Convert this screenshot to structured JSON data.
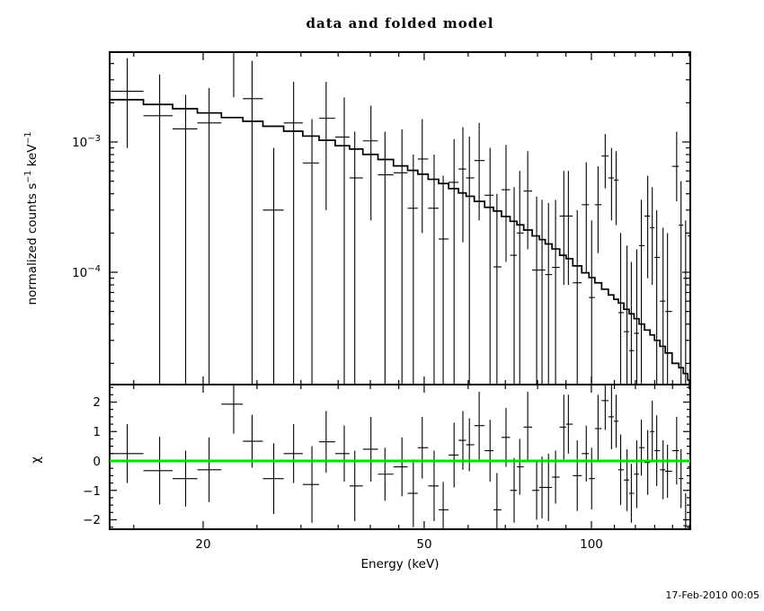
{
  "chart_data": {
    "type": "line",
    "subtype": "xspec-counts-spectrum-with-residuals",
    "title": "data and folded model",
    "xlabel": "Energy (keV)",
    "ylabel_top": "normalized counts s^−1 keV^−1",
    "ylabel_bottom": "χ",
    "timestamp": "17-Feb-2010 00:05",
    "accent_color": "#00e000",
    "frame_color": "#000000",
    "x_scale": "log",
    "y_scale_top": "log",
    "x_range": [
      13.63,
      150.86
    ],
    "y_range_top": [
      1.37e-05,
      0.0049
    ],
    "y_range_bottom": [
      -2.32,
      2.6
    ],
    "x_major_ticks": [
      {
        "value": 20,
        "label": "20"
      },
      {
        "value": 50,
        "label": "50"
      },
      {
        "value": 100,
        "label": "100"
      }
    ],
    "x_minor_ticks": [
      15,
      25,
      30,
      35,
      40,
      45,
      60,
      70,
      80,
      90,
      110,
      120,
      130,
      140,
      150
    ],
    "y_major_ticks": [
      {
        "value": 0.001,
        "base": "10",
        "exp": "−3"
      },
      {
        "value": 0.0001,
        "base": "10",
        "exp": "−4"
      }
    ],
    "chi_major_ticks": [
      {
        "value": 2,
        "label": "2"
      },
      {
        "value": 1,
        "label": "1"
      },
      {
        "value": 0,
        "label": "0"
      },
      {
        "value": -1,
        "label": "−1"
      },
      {
        "value": -2,
        "label": "−2"
      }
    ],
    "chi_minor_step": 0.25,
    "model": {
      "name": "folded model",
      "values": [
        0.00211,
        0.00194,
        0.0018,
        0.00167,
        0.00154,
        0.00144,
        0.00132,
        0.00121,
        0.00111,
        0.00103,
        0.000936,
        0.000882,
        0.000802,
        0.000734,
        0.000655,
        0.000605,
        0.000566,
        0.000517,
        0.00048,
        0.000439,
        0.000406,
        0.000383,
        0.00035,
        0.000315,
        0.000295,
        0.000268,
        0.000246,
        0.000231,
        0.000211,
        0.00019,
        0.000178,
        0.000165,
        0.000151,
        0.000135,
        0.000127,
        0.000112,
        9.9e-05,
        9.1e-05,
        8.3e-05,
        7.4e-05,
        6.7e-05,
        6.2e-05,
        5.8e-05,
        5.2e-05,
        4.8e-05,
        4.4e-05,
        4e-05,
        3.6e-05,
        3.3e-05,
        3e-05,
        2.7e-05,
        2.4e-05,
        2e-05,
        1.85e-05,
        1.67e-05,
        1.49e-05
      ]
    },
    "points": {
      "e": [
        14.6,
        16.7,
        18.6,
        20.5,
        22.7,
        24.5,
        26.8,
        29.1,
        31.4,
        33.3,
        35.9,
        37.5,
        40.1,
        42.5,
        45.6,
        47.8,
        49.6,
        52.1,
        54.1,
        56.6,
        58.7,
        60.3,
        62.8,
        65.7,
        67.6,
        70.2,
        72.6,
        74.3,
        76.8,
        79.7,
        81.5,
        83.7,
        86.2,
        89.2,
        90.9,
        94.3,
        97.9,
        100.1,
        102.8,
        105.9,
        108.7,
        110.8,
        112.9,
        115.9,
        118.0,
        120.7,
        123.0,
        126.3,
        128.7,
        131.1,
        134.6,
        137.1,
        142.4,
        145.0,
        147.8,
        150.5
      ],
      "rate": [
        0.00245,
        0.00159,
        0.00126,
        0.0014,
        0.0049,
        0.00215,
        0.0003,
        0.0014,
        0.00069,
        0.00152,
        0.00109,
        0.00053,
        0.00102,
        0.00056,
        0.00058,
        0.00031,
        0.00074,
        0.00031,
        0.00018,
        0.00049,
        0.00062,
        0.00053,
        0.00072,
        0.00039,
        0.00011,
        0.00043,
        0.000135,
        0.0002,
        0.00042,
        0.000104,
        0.000104,
        9.6e-05,
        0.000109,
        0.00027,
        0.00027,
        8.3e-05,
        0.00033,
        6.4e-05,
        0.00033,
        0.00078,
        0.00053,
        0.00051,
        4.9e-05,
        3.5e-05,
        2.5e-05,
        3.4e-05,
        0.00016,
        0.00027,
        0.00022,
        0.00013,
        6e-05,
        5e-05,
        0.00065,
        0.00023,
        9e-05,
        0.00019
      ],
      "err_hi": [
        0.0044,
        0.0033,
        0.0023,
        0.0026,
        0.008,
        0.0042,
        0.0009,
        0.0029,
        0.0015,
        0.0029,
        0.0022,
        0.0012,
        0.0019,
        0.0012,
        0.00125,
        0.0008,
        0.0015,
        0.0008,
        0.00055,
        0.00105,
        0.0013,
        0.0011,
        0.0014,
        0.0009,
        0.0004,
        0.00095,
        0.00045,
        0.0006,
        0.00085,
        0.00038,
        0.00036,
        0.00034,
        0.00036,
        0.0006,
        0.0006,
        0.0003,
        0.0007,
        0.00025,
        0.00065,
        0.00115,
        0.0009,
        0.00085,
        0.0002,
        0.00016,
        0.00012,
        0.00015,
        0.00036,
        0.00055,
        0.00045,
        0.0003,
        0.00022,
        0.0002,
        0.0012,
        0.0005,
        0.00025,
        0.0004
      ],
      "err_lo": [
        0.0009,
        0,
        0,
        0,
        0.0022,
        0,
        0,
        0,
        0,
        0.0003,
        0,
        0,
        0.00025,
        0,
        0,
        0,
        0.0002,
        0,
        0,
        0,
        0.00017,
        0,
        0.00025,
        0,
        0,
        0.00012,
        0,
        0,
        0.00015,
        0,
        0,
        0,
        0,
        8e-05,
        8e-05,
        0,
        0.0001,
        0,
        0.00014,
        0.00044,
        0.00025,
        0.00023,
        0,
        0,
        0,
        0,
        0,
        9e-05,
        8e-05,
        0,
        0,
        0,
        0.00035,
        0,
        0,
        0
      ],
      "chi": [
        0.25,
        -0.33,
        -0.6,
        -0.3,
        1.93,
        0.67,
        -0.6,
        0.25,
        -0.8,
        0.65,
        0.25,
        -0.85,
        0.4,
        -0.45,
        -0.2,
        -1.1,
        0.45,
        -0.85,
        -1.66,
        0.2,
        0.7,
        0.55,
        1.2,
        0.35,
        -1.66,
        0.8,
        -1.0,
        -0.2,
        1.15,
        -1.0,
        -0.9,
        -0.9,
        -0.55,
        1.15,
        1.25,
        -0.5,
        0.25,
        -0.6,
        1.1,
        2.05,
        1.5,
        1.35,
        -0.3,
        -0.65,
        -1.1,
        -0.45,
        0.45,
        -0.05,
        1.0,
        0.35,
        -0.3,
        -0.35,
        0.35,
        -0.6,
        -2.2,
        -0.2
      ],
      "chi_err": [
        1.0,
        1.15,
        0.95,
        1.1,
        1.0,
        0.9,
        1.2,
        1.0,
        1.3,
        1.05,
        0.95,
        1.2,
        1.1,
        0.9,
        1.0,
        1.15,
        1.05,
        1.2,
        0.95,
        1.1,
        1.0,
        0.9,
        1.15,
        1.05,
        1.25,
        1.0,
        1.1,
        0.95,
        1.2,
        1.0,
        1.05,
        1.15,
        0.9,
        1.1,
        1.0,
        1.2,
        0.95,
        1.05,
        1.15,
        1.0,
        1.1,
        0.9,
        1.2,
        1.05,
        1.0,
        1.15,
        0.95,
        1.1,
        1.05,
        1.2,
        1.0,
        0.9,
        1.15,
        1.0,
        1.1,
        1.05
      ]
    }
  }
}
